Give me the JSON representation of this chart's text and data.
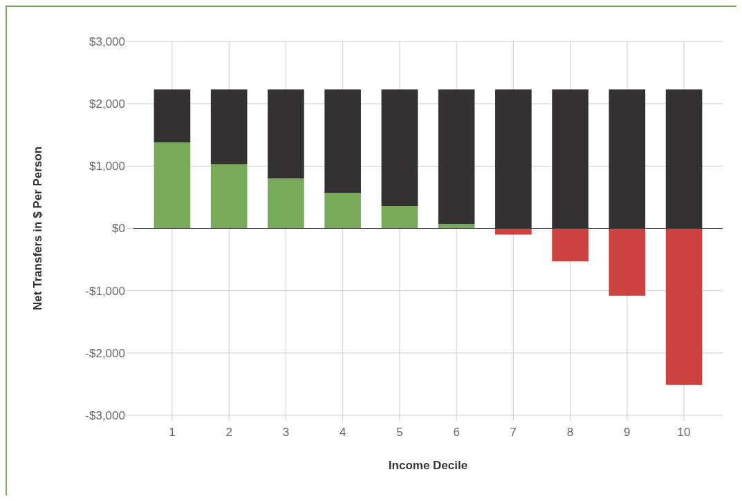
{
  "chart_data": {
    "type": "bar",
    "stacked": true,
    "xlabel": "Income Decile",
    "ylabel": "Net Transfers in $ Per Person",
    "categories": [
      "1",
      "2",
      "3",
      "4",
      "5",
      "6",
      "7",
      "8",
      "9",
      "10"
    ],
    "series": [
      {
        "colors": [
          "#79aa5a",
          "#79aa5a",
          "#79aa5a",
          "#79aa5a",
          "#79aa5a",
          "#79aa5a",
          "#cc4240",
          "#cc4240",
          "#cc4240",
          "#cc4240"
        ],
        "values": [
          1380,
          1030,
          800,
          570,
          360,
          70,
          -100,
          -530,
          -1080,
          -2510
        ]
      },
      {
        "color": "#333132",
        "values": [
          850,
          1200,
          1430,
          1660,
          1870,
          2160,
          2230,
          2230,
          2230,
          2230
        ]
      }
    ],
    "ylim": [
      -3000,
      3000
    ],
    "yticks": [
      {
        "value": -3000,
        "label": "-$3,000"
      },
      {
        "value": -2000,
        "label": "-$2,000"
      },
      {
        "value": -1000,
        "label": "-$1,000"
      },
      {
        "value": 0,
        "label": "$0"
      },
      {
        "value": 1000,
        "label": "$1,000"
      },
      {
        "value": 2000,
        "label": "$2,000"
      },
      {
        "value": 3000,
        "label": "$3,000"
      }
    ],
    "grid": true
  }
}
